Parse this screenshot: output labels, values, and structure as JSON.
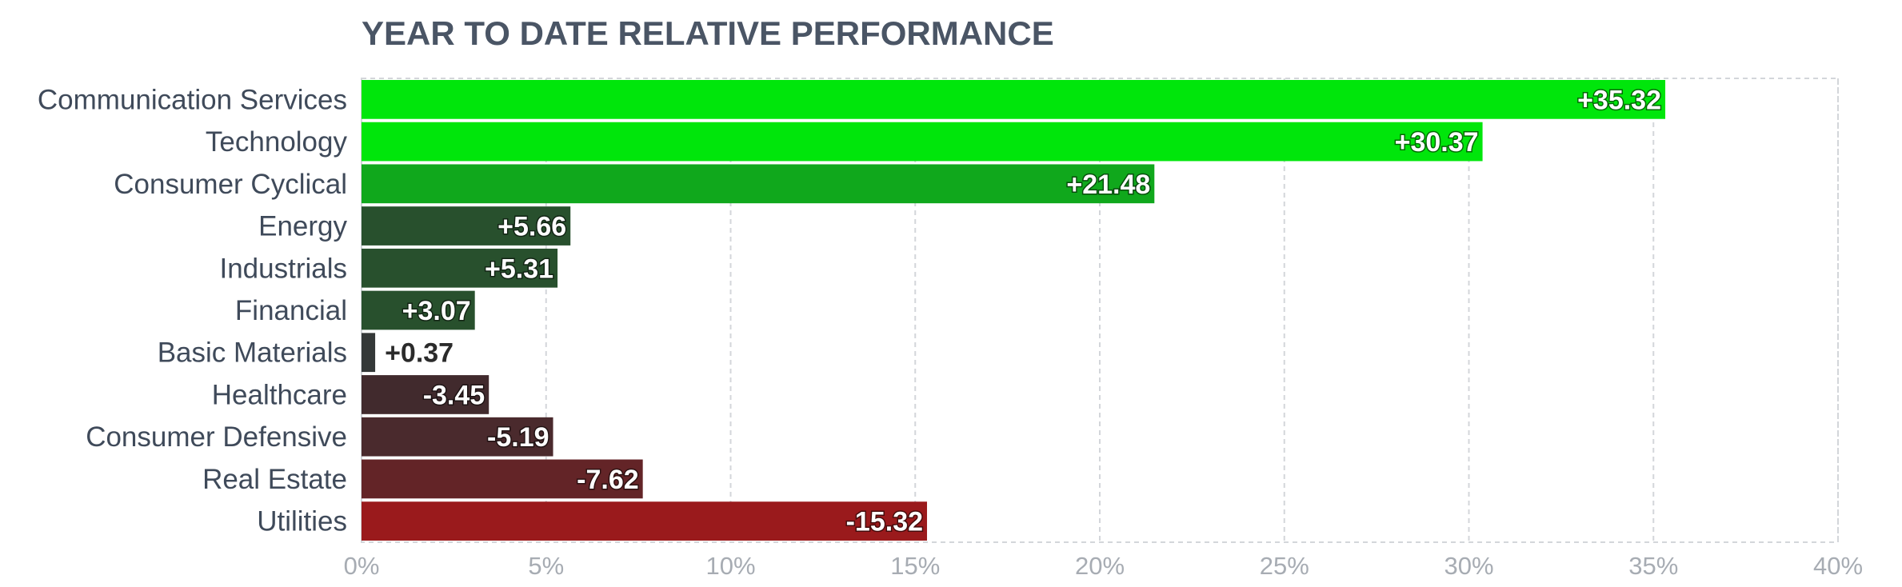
{
  "chart_data": {
    "type": "bar",
    "orientation": "horizontal",
    "title": "YEAR TO DATE RELATIVE PERFORMANCE",
    "xlabel": "",
    "ylabel": "",
    "xlim": [
      0,
      40
    ],
    "xticks": [
      0,
      5,
      10,
      15,
      20,
      25,
      30,
      35,
      40
    ],
    "xtick_labels": [
      "0%",
      "5%",
      "10%",
      "15%",
      "20%",
      "25%",
      "30%",
      "35%",
      "40%"
    ],
    "grid": true,
    "legend": "none",
    "categories": [
      "Communication Services",
      "Technology",
      "Consumer Cyclical",
      "Energy",
      "Industrials",
      "Financial",
      "Basic Materials",
      "Healthcare",
      "Consumer Defensive",
      "Real Estate",
      "Utilities"
    ],
    "values": [
      35.32,
      30.37,
      21.48,
      5.66,
      5.31,
      3.07,
      0.37,
      -3.45,
      -5.19,
      -7.62,
      -15.32
    ],
    "value_labels": [
      "+35.32",
      "+30.37",
      "+21.48",
      "+5.66",
      "+5.31",
      "+3.07",
      "+0.37",
      "-3.45",
      "-5.19",
      "-7.62",
      "-15.32"
    ],
    "bar_colors": [
      "#00e60b",
      "#00e60b",
      "#10a81c",
      "#28502d",
      "#28502d",
      "#28502d",
      "#343838",
      "#412a2d",
      "#4a2a2d",
      "#632427",
      "#9a1a1c"
    ],
    "bar_length_basis": "absolute value"
  }
}
